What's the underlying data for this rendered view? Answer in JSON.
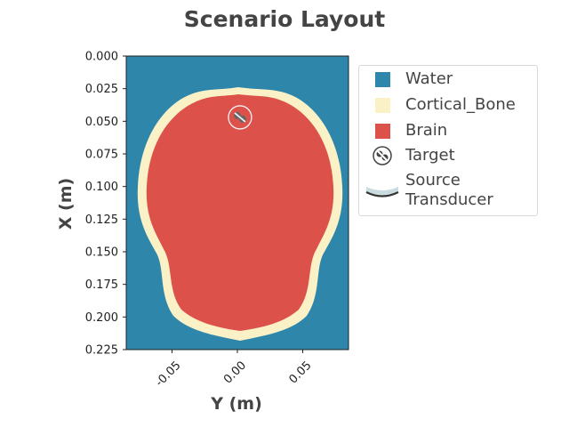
{
  "chart_data": {
    "type": "heatmap",
    "title": "Scenario Layout",
    "xlabel": "Y (m)",
    "ylabel": "X (m)",
    "xlim": [
      -0.085,
      0.085
    ],
    "ylim": [
      0.0,
      0.225
    ],
    "y_inverted": true,
    "x_ticks": [
      -0.05,
      0.0,
      0.05
    ],
    "x_tick_labels": [
      "-0.05",
      "0.00",
      "0.05"
    ],
    "y_ticks": [
      0.0,
      0.025,
      0.05,
      0.075,
      0.1,
      0.125,
      0.15,
      0.175,
      0.2,
      0.225
    ],
    "y_tick_labels": [
      "0.000",
      "0.025",
      "0.050",
      "0.075",
      "0.100",
      "0.125",
      "0.150",
      "0.175",
      "0.200",
      "0.225"
    ],
    "grid": false,
    "legend_position": "right",
    "materials": [
      {
        "name": "Water",
        "color": "#2e86ab"
      },
      {
        "name": "Cortical_Bone",
        "color": "#fbf1c7"
      },
      {
        "name": "Brain",
        "color": "#dc524b"
      }
    ],
    "target": {
      "label": "Target",
      "y": 0.002,
      "x": 0.047
    },
    "source": {
      "label": "Source Transducer"
    }
  },
  "legend": {
    "items": [
      {
        "label": "Water",
        "symbol": "swatch",
        "color": "#2e86ab"
      },
      {
        "label": "Cortical_Bone",
        "symbol": "swatch",
        "color": "#fbf1c7"
      },
      {
        "label": "Brain",
        "symbol": "swatch",
        "color": "#dc524b"
      },
      {
        "label": "Target",
        "symbol": "target-icon"
      },
      {
        "label": "Source Transducer",
        "symbol": "transducer-icon"
      }
    ]
  }
}
